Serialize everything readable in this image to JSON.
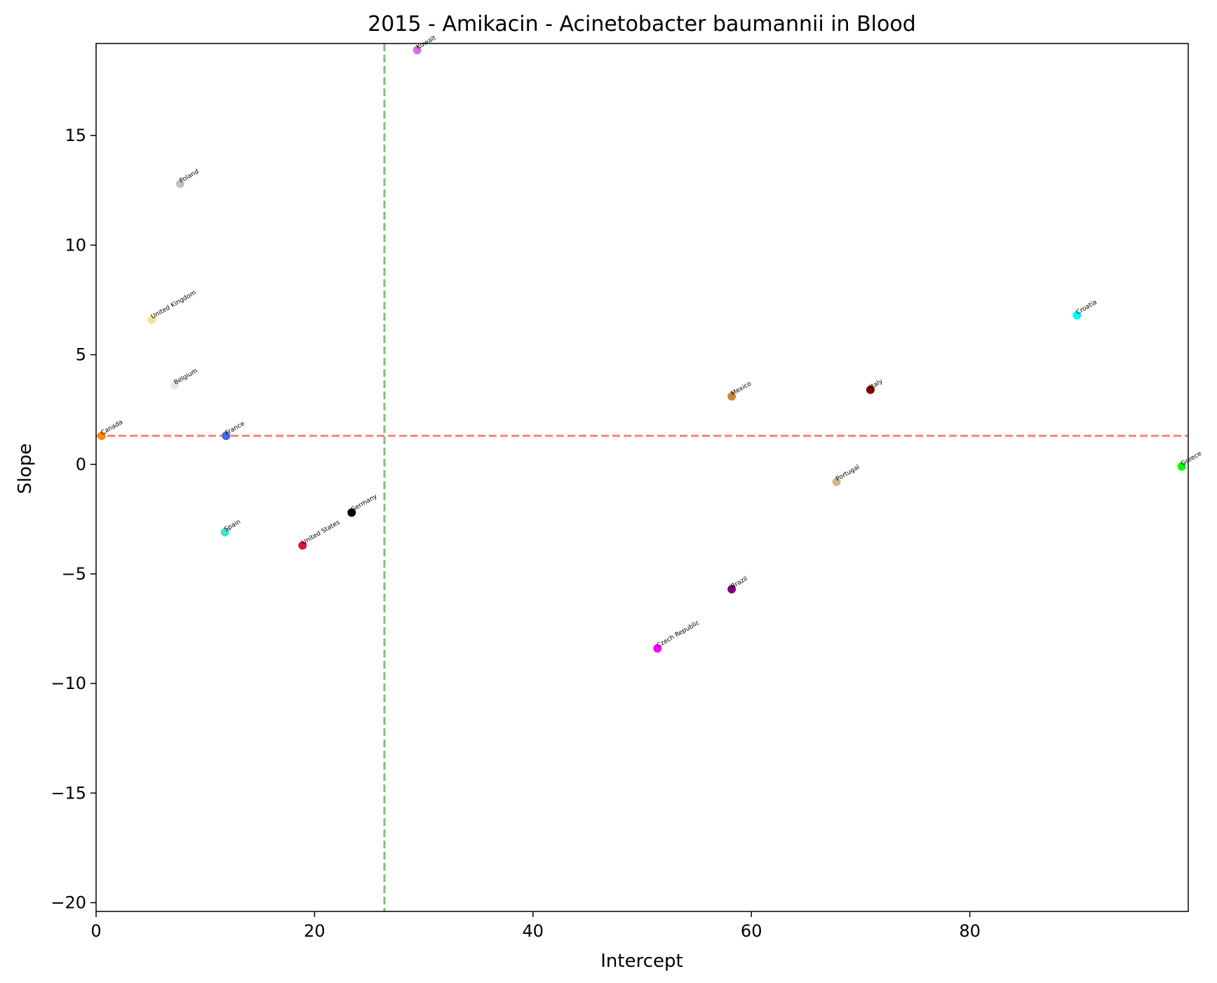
{
  "chart_data": {
    "type": "scatter",
    "title": "2015 - Amikacin - Acinetobacter baumannii in Blood",
    "xlabel": "Intercept",
    "ylabel": "Slope",
    "xlim": [
      0,
      100
    ],
    "ylim": [
      -20.4,
      19.2
    ],
    "xticks": [
      0,
      20,
      40,
      60,
      80
    ],
    "yticks": [
      -20,
      -15,
      -10,
      -5,
      0,
      5,
      10,
      15
    ],
    "xtick_labels": [
      "0",
      "20",
      "40",
      "60",
      "80"
    ],
    "ytick_labels": [
      "−20",
      "−15",
      "−10",
      "−5",
      "0",
      "5",
      "10",
      "15"
    ],
    "grid": false,
    "reference_lines": {
      "horizontal": {
        "y": 1.3,
        "color": "#ff7f7f",
        "style": "dashed"
      },
      "vertical": {
        "x": 26.4,
        "color": "#7fbf7f",
        "style": "dashed"
      }
    },
    "points": [
      {
        "label": "Kuwait",
        "x": 29.4,
        "y": 18.9,
        "color": "#da70d6"
      },
      {
        "label": "Poland",
        "x": 7.7,
        "y": 12.8,
        "color": "#c0c0c0"
      },
      {
        "label": "United Kingdom",
        "x": 5.1,
        "y": 6.6,
        "color": "#f0e68c"
      },
      {
        "label": "Belgium",
        "x": 7.2,
        "y": 3.6,
        "color": "#e6e6fa"
      },
      {
        "label": "Canada",
        "x": 0.5,
        "y": 1.3,
        "color": "#ff8c00"
      },
      {
        "label": "France",
        "x": 11.9,
        "y": 1.3,
        "color": "#4169e1"
      },
      {
        "label": "Spain",
        "x": 11.8,
        "y": -3.1,
        "color": "#40e0d0"
      },
      {
        "label": "United States",
        "x": 18.9,
        "y": -3.7,
        "color": "#dc143c"
      },
      {
        "label": "Germany",
        "x": 23.4,
        "y": -2.2,
        "color": "#000000"
      },
      {
        "label": "Mexico",
        "x": 58.2,
        "y": 3.1,
        "color": "#cd853f"
      },
      {
        "label": "Italy",
        "x": 70.9,
        "y": 3.4,
        "color": "#800000"
      },
      {
        "label": "Croatia",
        "x": 89.8,
        "y": 6.8,
        "color": "#00ffff"
      },
      {
        "label": "Greece",
        "x": 99.4,
        "y": -0.1,
        "color": "#00ff00"
      },
      {
        "label": "Portugal",
        "x": 67.8,
        "y": -0.8,
        "color": "#d2b48c"
      },
      {
        "label": "Brazil",
        "x": 58.2,
        "y": -5.7,
        "color": "#800080"
      },
      {
        "label": "Czech Republic",
        "x": 51.4,
        "y": -8.4,
        "color": "#ff00ff"
      }
    ]
  }
}
